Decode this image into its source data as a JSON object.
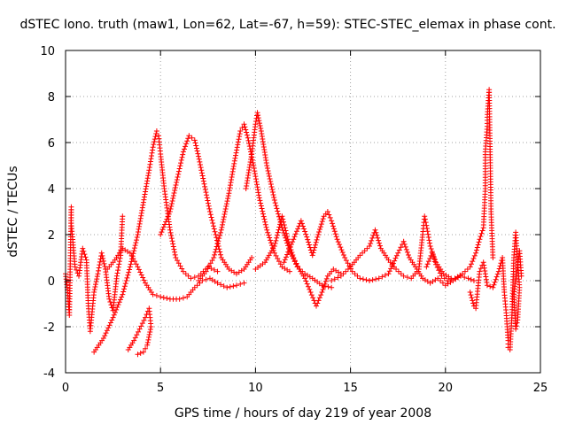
{
  "chart_data": {
    "type": "scatter",
    "title": "dSTEC Iono. truth (maw1, Lon=62, Lat=-67, h=59): STEC-STEC_elemax in phase cont.",
    "xlabel": "GPS time / hours of day 219 of year 2008",
    "ylabel": "dSTEC  / TECUs",
    "xlim": [
      0,
      25
    ],
    "ylim": [
      -4,
      10
    ],
    "xticks": [
      0,
      5,
      10,
      15,
      20,
      25
    ],
    "yticks": [
      -4,
      -2,
      0,
      2,
      4,
      6,
      8,
      10
    ],
    "xtick_labels": [
      "0",
      "5",
      "10",
      "15",
      "20",
      "25"
    ],
    "ytick_labels": [
      "-4",
      "-2",
      "0",
      "2",
      "4",
      "6",
      "8",
      "10"
    ],
    "grid": true,
    "legend": "none",
    "marker": "+",
    "color": "#ff0000",
    "series": [
      {
        "points": [
          [
            0.0,
            0.3
          ],
          [
            0.1,
            -0.4
          ],
          [
            0.2,
            -1.5
          ],
          [
            0.3,
            3.2
          ],
          [
            0.3,
            2.5
          ],
          [
            0.5,
            0.6
          ],
          [
            0.7,
            0.2
          ],
          [
            0.9,
            1.4
          ],
          [
            1.1,
            0.9
          ],
          [
            1.2,
            -1.1
          ],
          [
            1.3,
            -2.2
          ],
          [
            1.5,
            -0.5
          ],
          [
            1.7,
            0.3
          ],
          [
            1.9,
            1.2
          ],
          [
            2.1,
            0.5
          ],
          [
            2.3,
            -0.8
          ],
          [
            2.5,
            -1.3
          ],
          [
            2.7,
            0.2
          ],
          [
            2.9,
            1.1
          ],
          [
            3.0,
            2.8
          ]
        ]
      },
      {
        "points": [
          [
            1.5,
            -3.1
          ],
          [
            2.0,
            -2.5
          ],
          [
            2.5,
            -1.6
          ],
          [
            3.0,
            -0.6
          ],
          [
            3.4,
            0.6
          ],
          [
            3.8,
            2.0
          ],
          [
            4.1,
            3.4
          ],
          [
            4.4,
            4.8
          ],
          [
            4.6,
            5.8
          ],
          [
            4.8,
            6.5
          ],
          [
            4.9,
            6.3
          ],
          [
            5.0,
            5.5
          ],
          [
            5.2,
            4.0
          ],
          [
            5.5,
            2.2
          ],
          [
            5.8,
            1.0
          ],
          [
            6.2,
            0.4
          ],
          [
            6.6,
            0.1
          ],
          [
            7.0,
            0.2
          ],
          [
            7.5,
            0.6
          ],
          [
            8.0,
            0.4
          ]
        ]
      },
      {
        "points": [
          [
            2.2,
            0.5
          ],
          [
            2.6,
            0.9
          ],
          [
            3.0,
            1.4
          ],
          [
            3.4,
            1.2
          ],
          [
            3.8,
            0.6
          ],
          [
            4.2,
            -0.1
          ],
          [
            4.6,
            -0.6
          ],
          [
            5.0,
            -0.7
          ],
          [
            5.5,
            -0.8
          ],
          [
            6.0,
            -0.8
          ],
          [
            6.4,
            -0.7
          ],
          [
            6.8,
            -0.3
          ],
          [
            7.2,
            0.0
          ],
          [
            7.6,
            0.1
          ],
          [
            8.0,
            -0.1
          ],
          [
            8.5,
            -0.3
          ],
          [
            9.0,
            -0.2
          ],
          [
            9.4,
            -0.1
          ]
        ]
      },
      {
        "points": [
          [
            3.3,
            -3.0
          ],
          [
            3.6,
            -2.6
          ],
          [
            3.9,
            -2.1
          ],
          [
            4.2,
            -1.6
          ],
          [
            4.4,
            -1.2
          ],
          [
            4.5,
            -2.0
          ],
          [
            4.3,
            -2.8
          ],
          [
            4.1,
            -3.1
          ],
          [
            3.8,
            -3.2
          ]
        ]
      },
      {
        "points": [
          [
            5.0,
            2.0
          ],
          [
            5.5,
            3.0
          ],
          [
            5.9,
            4.5
          ],
          [
            6.2,
            5.6
          ],
          [
            6.5,
            6.3
          ],
          [
            6.8,
            6.1
          ],
          [
            7.0,
            5.4
          ],
          [
            7.3,
            4.2
          ],
          [
            7.6,
            3.0
          ],
          [
            7.9,
            2.0
          ],
          [
            8.2,
            1.0
          ],
          [
            8.6,
            0.5
          ],
          [
            9.0,
            0.3
          ],
          [
            9.4,
            0.5
          ],
          [
            9.8,
            1.0
          ]
        ]
      },
      {
        "points": [
          [
            7.0,
            0.0
          ],
          [
            7.4,
            0.4
          ],
          [
            7.8,
            1.0
          ],
          [
            8.2,
            2.2
          ],
          [
            8.6,
            3.8
          ],
          [
            8.9,
            5.2
          ],
          [
            9.2,
            6.5
          ],
          [
            9.4,
            6.8
          ],
          [
            9.6,
            6.2
          ],
          [
            9.9,
            5.0
          ],
          [
            10.2,
            3.6
          ],
          [
            10.6,
            2.2
          ],
          [
            11.0,
            1.2
          ],
          [
            11.4,
            0.6
          ],
          [
            11.8,
            0.4
          ]
        ]
      },
      {
        "points": [
          [
            9.5,
            4.0
          ],
          [
            9.8,
            5.5
          ],
          [
            10.0,
            6.8
          ],
          [
            10.1,
            7.3
          ],
          [
            10.3,
            6.5
          ],
          [
            10.6,
            5.0
          ],
          [
            11.0,
            3.5
          ],
          [
            11.4,
            2.3
          ],
          [
            11.8,
            1.3
          ],
          [
            12.2,
            0.6
          ],
          [
            12.6,
            0.3
          ],
          [
            13.0,
            0.1
          ],
          [
            13.5,
            -0.2
          ],
          [
            14.0,
            -0.3
          ]
        ]
      },
      {
        "points": [
          [
            10.0,
            0.5
          ],
          [
            10.5,
            0.8
          ],
          [
            11.0,
            1.5
          ],
          [
            11.4,
            2.8
          ],
          [
            11.7,
            1.8
          ],
          [
            12.0,
            1.0
          ],
          [
            12.3,
            0.5
          ],
          [
            12.6,
            0.1
          ],
          [
            12.9,
            -0.5
          ],
          [
            13.2,
            -1.1
          ],
          [
            13.5,
            -0.5
          ],
          [
            13.8,
            0.2
          ],
          [
            14.1,
            0.5
          ],
          [
            14.5,
            0.3
          ]
        ]
      },
      {
        "points": [
          [
            11.5,
            0.8
          ],
          [
            12.0,
            1.8
          ],
          [
            12.4,
            2.6
          ],
          [
            12.7,
            1.9
          ],
          [
            13.0,
            1.1
          ],
          [
            13.3,
            2.0
          ],
          [
            13.6,
            2.8
          ],
          [
            13.8,
            3.0
          ],
          [
            14.0,
            2.6
          ],
          [
            14.3,
            1.8
          ],
          [
            14.7,
            1.0
          ],
          [
            15.1,
            0.4
          ],
          [
            15.5,
            0.1
          ],
          [
            16.0,
            0.0
          ]
        ]
      },
      {
        "points": [
          [
            14.0,
            0.0
          ],
          [
            14.5,
            0.2
          ],
          [
            15.0,
            0.6
          ],
          [
            15.5,
            1.1
          ],
          [
            16.0,
            1.5
          ],
          [
            16.3,
            2.2
          ],
          [
            16.6,
            1.4
          ],
          [
            17.0,
            0.9
          ],
          [
            17.4,
            0.5
          ],
          [
            17.8,
            0.2
          ],
          [
            18.2,
            0.1
          ],
          [
            18.6,
            0.5
          ],
          [
            18.8,
            2.0
          ],
          [
            18.9,
            2.8
          ],
          [
            19.0,
            2.4
          ],
          [
            19.2,
            1.5
          ],
          [
            19.5,
            0.8
          ],
          [
            19.9,
            0.3
          ],
          [
            20.3,
            0.1
          ]
        ]
      },
      {
        "points": [
          [
            16.0,
            0.0
          ],
          [
            16.5,
            0.1
          ],
          [
            17.0,
            0.3
          ],
          [
            17.5,
            1.2
          ],
          [
            17.8,
            1.7
          ],
          [
            18.1,
            1.0
          ],
          [
            18.5,
            0.5
          ],
          [
            18.8,
            0.1
          ],
          [
            19.2,
            -0.1
          ],
          [
            19.6,
            0.1
          ],
          [
            20.0,
            -0.2
          ],
          [
            20.4,
            0.0
          ],
          [
            20.8,
            0.2
          ],
          [
            21.2,
            0.1
          ],
          [
            21.5,
            0.0
          ]
        ]
      },
      {
        "points": [
          [
            19.0,
            0.6
          ],
          [
            19.3,
            1.2
          ],
          [
            19.5,
            0.7
          ],
          [
            19.8,
            0.2
          ],
          [
            20.1,
            0.0
          ],
          [
            20.5,
            0.1
          ],
          [
            20.9,
            0.3
          ],
          [
            21.3,
            0.6
          ],
          [
            21.6,
            1.2
          ],
          [
            21.8,
            1.8
          ],
          [
            22.0,
            2.3
          ],
          [
            22.1,
            4.0
          ],
          [
            22.1,
            5.6
          ],
          [
            22.2,
            6.7
          ],
          [
            22.2,
            7.1
          ],
          [
            22.3,
            8.3
          ],
          [
            22.4,
            3.0
          ],
          [
            22.5,
            1.0
          ]
        ]
      },
      {
        "points": [
          [
            21.3,
            -0.5
          ],
          [
            21.5,
            -1.1
          ],
          [
            21.6,
            -1.2
          ],
          [
            21.8,
            0.4
          ],
          [
            22.0,
            0.8
          ],
          [
            22.2,
            -0.2
          ],
          [
            22.5,
            -0.3
          ],
          [
            22.8,
            0.4
          ],
          [
            23.0,
            1.0
          ],
          [
            23.1,
            -0.5
          ],
          [
            23.2,
            -1.4
          ],
          [
            23.3,
            -2.6
          ],
          [
            23.3,
            -2.9
          ],
          [
            23.4,
            -3.0
          ],
          [
            23.5,
            -1.5
          ],
          [
            23.6,
            1.0
          ],
          [
            23.7,
            2.1
          ],
          [
            23.8,
            0.8
          ],
          [
            23.9,
            -0.3
          ],
          [
            23.8,
            -1.7
          ],
          [
            23.7,
            -2.1
          ],
          [
            23.6,
            -0.6
          ],
          [
            23.9,
            1.3
          ],
          [
            24.0,
            0.2
          ]
        ]
      }
    ]
  }
}
